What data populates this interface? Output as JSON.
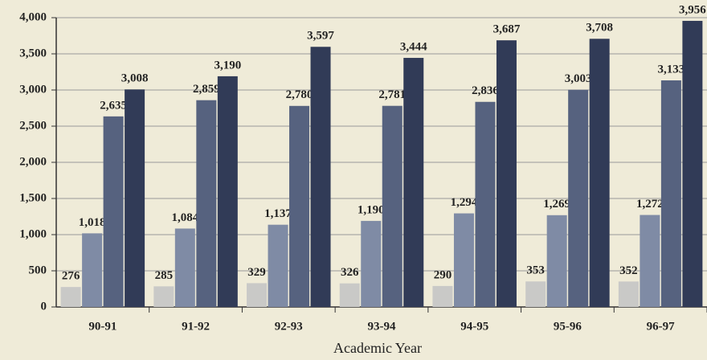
{
  "chart_data": {
    "type": "bar",
    "x_label": "Academic Year",
    "categories": [
      "90-91",
      "91-92",
      "92-93",
      "93-94",
      "94-95",
      "95-96",
      "96-97"
    ],
    "series": [
      {
        "color": "#c9c9c7",
        "values": [
          276,
          285,
          329,
          326,
          290,
          353,
          352
        ],
        "value_labels": [
          "276",
          "285",
          "329",
          "326",
          "290",
          "353",
          "352"
        ]
      },
      {
        "color": "#7f8ba5",
        "values": [
          1018,
          1084,
          1137,
          1190,
          1294,
          1269,
          1272
        ],
        "value_labels": [
          "1,018",
          "1,084",
          "1,137",
          "1,190",
          "1,294",
          "1,269",
          "1,272"
        ]
      },
      {
        "color": "#56627f",
        "values": [
          2635,
          2859,
          2780,
          2781,
          2836,
          3003,
          3133
        ],
        "value_labels": [
          "2,635",
          "2,859",
          "2,780",
          "2,781",
          "2,836",
          "3,003",
          "3,133"
        ]
      },
      {
        "color": "#313b57",
        "values": [
          3008,
          3190,
          3597,
          3444,
          3687,
          3708,
          3956
        ],
        "value_labels": [
          "3,008",
          "3,190",
          "3,597",
          "3,444",
          "3,687",
          "3,708",
          "3,956"
        ]
      }
    ],
    "ylim": [
      0,
      4000
    ],
    "yticks": [
      0,
      500,
      {
        "value": 1000,
        "label": "1,000"
      },
      {
        "value": 1500,
        "label": "1,500"
      },
      {
        "value": 2000,
        "label": "2,000"
      },
      {
        "value": 2500,
        "label": "2,500"
      },
      {
        "value": 3000,
        "label": "3,000"
      },
      {
        "value": 3500,
        "label": "3,500"
      },
      {
        "value": 4000,
        "label": "4,000"
      }
    ],
    "grid": true
  }
}
